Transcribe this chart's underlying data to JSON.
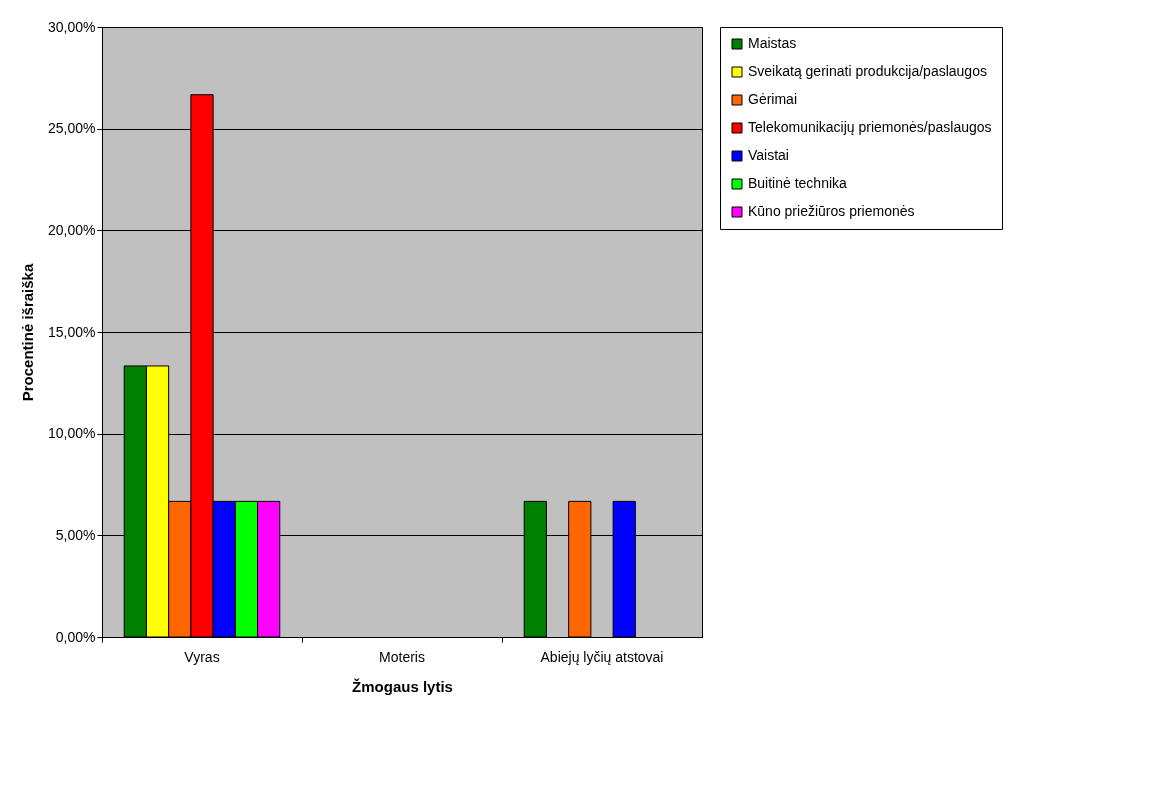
{
  "chart_data": {
    "type": "bar",
    "xlabel": "Žmogaus lytis",
    "ylabel": "Procentinė išraiška",
    "categories": [
      "Vyras",
      "Moteris",
      "Abiejų lyčių atstovai"
    ],
    "series": [
      {
        "name": "Maistas",
        "color": "#008000",
        "values": [
          13.33,
          null,
          6.67
        ]
      },
      {
        "name": "Sveikatą gerinati produkcija/paslaugos",
        "color": "#ffff00",
        "values": [
          13.33,
          null,
          null
        ]
      },
      {
        "name": "Gėrimai",
        "color": "#ff6600",
        "values": [
          6.67,
          null,
          6.67
        ]
      },
      {
        "name": "Telekomunikacijų priemonės/paslaugos",
        "color": "#ff0000",
        "values": [
          26.67,
          null,
          null
        ]
      },
      {
        "name": "Vaistai",
        "color": "#0000ff",
        "values": [
          6.67,
          null,
          6.67
        ]
      },
      {
        "name": "Buitinė technika",
        "color": "#00ff00",
        "values": [
          6.67,
          null,
          null
        ]
      },
      {
        "name": "Kūno priežiūros priemonės",
        "color": "#ff00ff",
        "values": [
          6.67,
          null,
          null
        ]
      }
    ],
    "ylim": [
      0,
      30
    ],
    "yticks": [
      {
        "value": 0,
        "label": "0,00%"
      },
      {
        "value": 5,
        "label": "5,00%"
      },
      {
        "value": 10,
        "label": "10,00%"
      },
      {
        "value": 15,
        "label": "15,00%"
      },
      {
        "value": 20,
        "label": "20,00%"
      },
      {
        "value": 25,
        "label": "25,00%"
      },
      {
        "value": 30,
        "label": "30,00%"
      }
    ],
    "grid": "y",
    "legend": "right"
  }
}
